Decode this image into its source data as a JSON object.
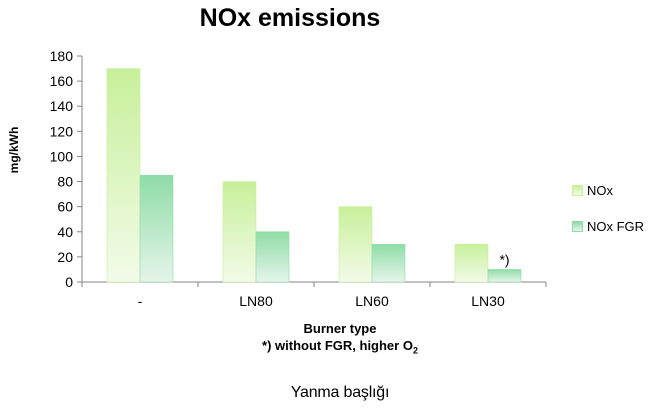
{
  "chart_data": {
    "type": "bar",
    "title": "NOx emissions",
    "xlabel": "Burner type",
    "xlabel_note": "*) without FGR, higher O",
    "xlabel_note_sub": "2",
    "ylabel": "mg/kWh",
    "caption": "Yanma başlığı",
    "categories": [
      "-",
      "LN80",
      "LN60",
      "LN30"
    ],
    "yticks": [
      "0",
      "20",
      "40",
      "60",
      "80",
      "100",
      "120",
      "140",
      "160",
      "180"
    ],
    "ylim": [
      0,
      180
    ],
    "grid": false,
    "legend_position": "right",
    "series": [
      {
        "name": "NOx",
        "values": [
          170,
          80,
          60,
          30
        ],
        "color_top": "#c7f09a",
        "color_bottom": "#f3fbe9"
      },
      {
        "name": "NOx FGR",
        "values": [
          85,
          40,
          30,
          10
        ],
        "color_top": "#8fdca6",
        "color_bottom": "#e5f5ea"
      }
    ],
    "annotations": [
      {
        "text": "*)",
        "category": "LN30",
        "series": "NOx FGR",
        "value": 10
      }
    ]
  }
}
